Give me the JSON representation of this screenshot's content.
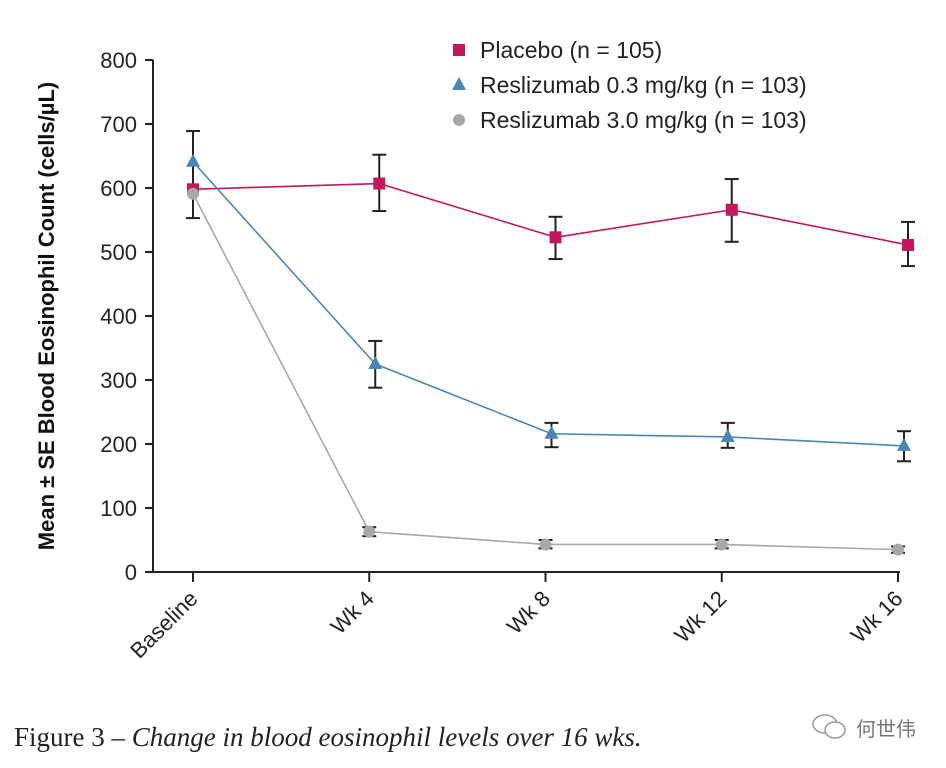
{
  "chart_data": {
    "type": "line",
    "title": "",
    "xlabel": "",
    "ylabel": "Mean ± SE Blood Eosinophil Count (cells/µL)",
    "ylim": [
      0,
      800
    ],
    "yticks": [
      0,
      100,
      200,
      300,
      400,
      500,
      600,
      700,
      800
    ],
    "categories": [
      "Baseline",
      "Wk 4",
      "Wk 8",
      "Wk 12",
      "Wk 16"
    ],
    "legend_position": "top-right",
    "series": [
      {
        "name": "Placebo (n = 105)",
        "marker": "square",
        "color": "#c2185b",
        "values": [
          598,
          607,
          523,
          566,
          511
        ],
        "err_low": [
          null,
          564,
          489,
          516,
          478
        ],
        "err_high": [
          null,
          652,
          555,
          614,
          547
        ]
      },
      {
        "name": "Reslizumab 0.3 mg/kg (n = 103)",
        "marker": "triangle",
        "color": "#4a86b3",
        "values": [
          641,
          325,
          216,
          211,
          197
        ],
        "err_low": [
          553,
          288,
          195,
          194,
          173
        ],
        "err_high": [
          689,
          361,
          233,
          233,
          220
        ]
      },
      {
        "name": "Reslizumab 3.0 mg/kg (n = 103)",
        "marker": "circle",
        "color": "#a8a8a8",
        "values": [
          591,
          63,
          43,
          43,
          35
        ],
        "err_low": [
          null,
          56,
          37,
          37,
          30
        ],
        "err_high": [
          null,
          70,
          50,
          50,
          40
        ]
      }
    ]
  },
  "caption": {
    "prefix": "Figure 3 – ",
    "text": "Change in blood eosinophil levels over 16 wks."
  },
  "watermark": {
    "icon": "wechat-icon",
    "text": "何世伟"
  }
}
